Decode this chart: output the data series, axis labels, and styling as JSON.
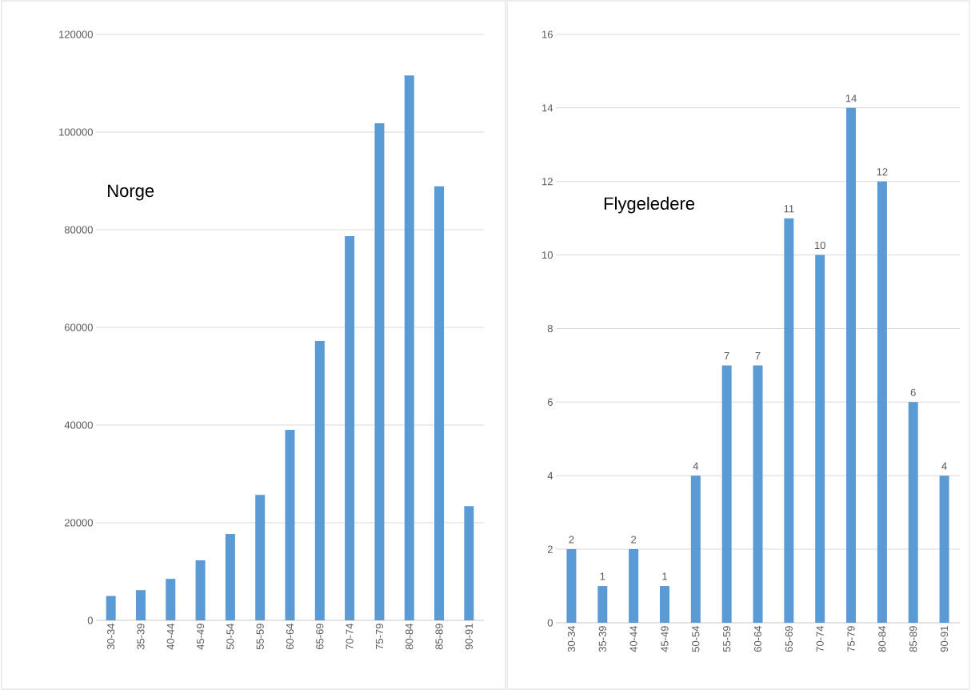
{
  "chart_data": [
    {
      "type": "bar",
      "title": "Norge",
      "categories": [
        "30-34",
        "35-39",
        "40-44",
        "45-49",
        "50-54",
        "55-59",
        "60-64",
        "65-69",
        "70-74",
        "75-79",
        "80-84",
        "85-89",
        "90-91"
      ],
      "values": [
        5000,
        6200,
        8500,
        12300,
        17700,
        25700,
        39000,
        57200,
        78700,
        101800,
        111600,
        88900,
        23400
      ],
      "color": "#5b9bd5",
      "ylim": [
        0,
        120000
      ],
      "yticks": [
        0,
        20000,
        40000,
        60000,
        80000,
        100000,
        120000
      ],
      "grid": "y"
    },
    {
      "type": "bar",
      "title": "Flygeledere",
      "categories": [
        "30-34",
        "35-39",
        "40-44",
        "45-49",
        "50-54",
        "55-59",
        "60-64",
        "65-69",
        "70-74",
        "75-79",
        "80-84",
        "85-89",
        "90-91"
      ],
      "values": [
        2,
        1,
        2,
        1,
        4,
        7,
        7,
        11,
        10,
        14,
        12,
        6,
        4
      ],
      "color": "#5b9bd5",
      "ylim": [
        0,
        16
      ],
      "yticks": [
        0,
        2,
        4,
        6,
        8,
        10,
        12,
        14,
        16
      ],
      "grid": "y",
      "data_labels": true
    }
  ]
}
